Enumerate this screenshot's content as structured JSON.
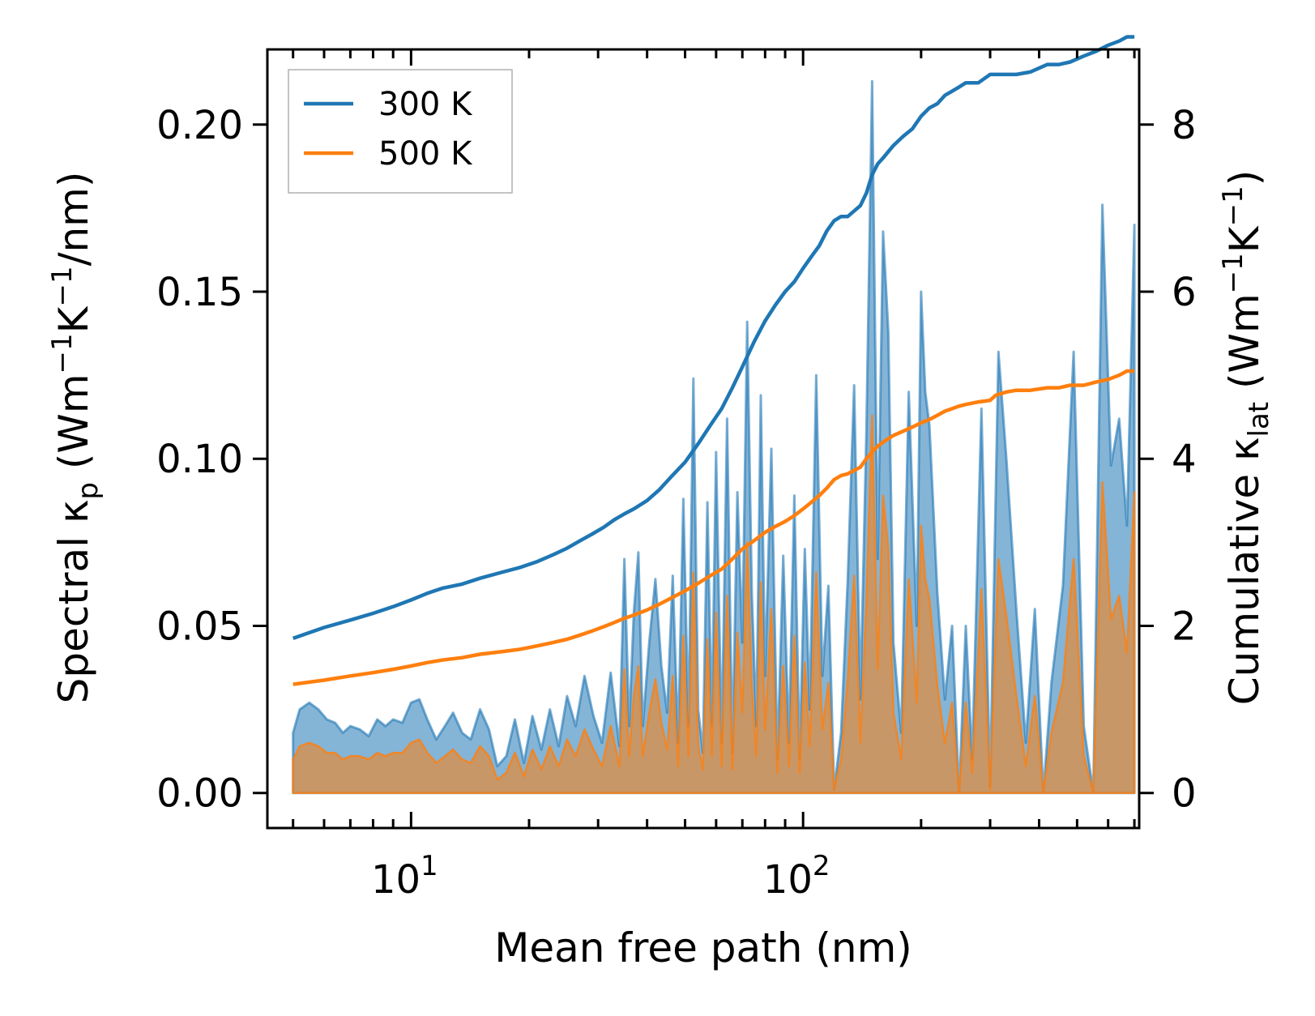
{
  "chart_data": {
    "type": "line",
    "title": "",
    "xlabel": "Mean free path (nm)",
    "ylabel_left_main": "Spectral κ",
    "ylabel_left_sub": "p",
    "ylabel_left_units": " (Wm",
    "ylabel_left_units_sup1": "−1",
    "ylabel_left_units_mid": "K",
    "ylabel_left_units_sup2": "−1",
    "ylabel_left_units_end": "/nm)",
    "ylabel_right_main": "Cumulative κ",
    "ylabel_right_sub": "lat",
    "ylabel_right_units": " (Wm",
    "ylabel_right_units_sup1": "−1",
    "ylabel_right_units_mid": "K",
    "ylabel_right_units_sup2": "−1",
    "ylabel_right_units_end": ")",
    "xscale": "log",
    "xlim": [
      4.3,
      720
    ],
    "ylim_left": [
      -0.0105,
      0.2225
    ],
    "ylim_right": [
      -0.42,
      8.9
    ],
    "x_major_ticks": [
      {
        "value": 10,
        "base": "10",
        "exp": "1"
      },
      {
        "value": 100,
        "base": "10",
        "exp": "2"
      }
    ],
    "y_left_ticks": [
      {
        "value": 0.0,
        "label": "0.00"
      },
      {
        "value": 0.05,
        "label": "0.05"
      },
      {
        "value": 0.1,
        "label": "0.10"
      },
      {
        "value": 0.15,
        "label": "0.15"
      },
      {
        "value": 0.2,
        "label": "0.20"
      }
    ],
    "y_right_ticks": [
      {
        "value": 0,
        "label": "0"
      },
      {
        "value": 2,
        "label": "2"
      },
      {
        "value": 4,
        "label": "4"
      },
      {
        "value": 6,
        "label": "6"
      },
      {
        "value": 8,
        "label": "8"
      }
    ],
    "legend": {
      "position": "upper-left",
      "entries": [
        {
          "label": "300 K",
          "color": "#1f77b4"
        },
        {
          "label": "500 K",
          "color": "#ff7f0e"
        }
      ]
    },
    "colors": {
      "s300": "#1f77b4",
      "s500": "#ff7f0e",
      "fill300": "#1f77b4",
      "fill500": "#ff7f0e"
    },
    "spectral": {
      "x": [
        5.0,
        5.2,
        5.5,
        5.8,
        6.1,
        6.4,
        6.7,
        7.0,
        7.4,
        7.8,
        8.2,
        8.6,
        9.0,
        9.5,
        10.0,
        10.5,
        11.0,
        11.6,
        12.2,
        12.8,
        13.5,
        14.2,
        15.0,
        15.8,
        16.6,
        17.5,
        18.4,
        19.4,
        20.4,
        21.5,
        22.6,
        23.8,
        25.0,
        26.3,
        27.7,
        29.2,
        30.7,
        32.3,
        34.0,
        35.0,
        36.0,
        37.0,
        38.0,
        39.0,
        40.5,
        42.0,
        43.5,
        45.0,
        46.5,
        48.0,
        49.5,
        51.0,
        52.5,
        54.0,
        55.5,
        57.0,
        58.5,
        60.0,
        62.0,
        64.0,
        66.0,
        68.0,
        70.0,
        72.0,
        74.0,
        76.0,
        78.0,
        80.0,
        83.0,
        86.0,
        89.0,
        92.0,
        95.0,
        98.0,
        101.0,
        104.0,
        108.0,
        112.0,
        116.0,
        120.0,
        125.0,
        130.0,
        135.0,
        140.0,
        145.0,
        150.0,
        155.0,
        160.0,
        165.0,
        170.0,
        178.0,
        186.0,
        195.0,
        200.0,
        205.0,
        210.0,
        220.0,
        230.0,
        240.0,
        250.0,
        260.0,
        270.0,
        285.0,
        300.0,
        315.0,
        330.0,
        350.0,
        370.0,
        390.0,
        410.0,
        430.0,
        460.0,
        490.0,
        520.0,
        550.0,
        580.0,
        610.0,
        640.0,
        670.0,
        700.0
      ],
      "y300": [
        0.018,
        0.025,
        0.027,
        0.025,
        0.022,
        0.021,
        0.018,
        0.02,
        0.019,
        0.017,
        0.022,
        0.02,
        0.022,
        0.021,
        0.027,
        0.028,
        0.022,
        0.016,
        0.02,
        0.024,
        0.018,
        0.016,
        0.025,
        0.019,
        0.008,
        0.011,
        0.022,
        0.009,
        0.023,
        0.013,
        0.025,
        0.014,
        0.029,
        0.02,
        0.035,
        0.023,
        0.015,
        0.036,
        0.014,
        0.07,
        0.02,
        0.054,
        0.072,
        0.02,
        0.045,
        0.064,
        0.038,
        0.024,
        0.065,
        0.015,
        0.088,
        0.02,
        0.124,
        0.025,
        0.012,
        0.087,
        0.02,
        0.102,
        0.015,
        0.112,
        0.012,
        0.09,
        0.045,
        0.141,
        0.06,
        0.02,
        0.119,
        0.035,
        0.103,
        0.01,
        0.071,
        0.015,
        0.089,
        0.01,
        0.073,
        0.025,
        0.125,
        0.035,
        0.062,
        0.001,
        0.018,
        0.064,
        0.122,
        0.028,
        0.108,
        0.213,
        0.07,
        0.168,
        0.138,
        0.045,
        0.018,
        0.12,
        0.05,
        0.15,
        0.12,
        0.11,
        0.06,
        0.028,
        0.05,
        0.0,
        0.05,
        0.01,
        0.115,
        0.002,
        0.132,
        0.1,
        0.055,
        0.015,
        0.055,
        0.0,
        0.033,
        0.062,
        0.132,
        0.02,
        0.0,
        0.176,
        0.098,
        0.112,
        0.08,
        0.17,
        0.0
      ],
      "y500": [
        0.01,
        0.014,
        0.015,
        0.014,
        0.012,
        0.012,
        0.01,
        0.011,
        0.011,
        0.01,
        0.012,
        0.011,
        0.012,
        0.012,
        0.015,
        0.016,
        0.012,
        0.009,
        0.011,
        0.013,
        0.01,
        0.009,
        0.014,
        0.011,
        0.004,
        0.006,
        0.012,
        0.005,
        0.013,
        0.007,
        0.014,
        0.008,
        0.016,
        0.011,
        0.019,
        0.013,
        0.008,
        0.02,
        0.008,
        0.037,
        0.011,
        0.029,
        0.038,
        0.011,
        0.024,
        0.034,
        0.021,
        0.013,
        0.035,
        0.008,
        0.047,
        0.011,
        0.066,
        0.014,
        0.007,
        0.046,
        0.011,
        0.054,
        0.008,
        0.059,
        0.007,
        0.048,
        0.024,
        0.075,
        0.032,
        0.011,
        0.063,
        0.019,
        0.055,
        0.006,
        0.038,
        0.008,
        0.047,
        0.006,
        0.039,
        0.014,
        0.066,
        0.019,
        0.033,
        0.001,
        0.01,
        0.034,
        0.065,
        0.015,
        0.057,
        0.113,
        0.037,
        0.089,
        0.073,
        0.024,
        0.01,
        0.064,
        0.027,
        0.08,
        0.064,
        0.058,
        0.032,
        0.015,
        0.027,
        0.0,
        0.027,
        0.006,
        0.061,
        0.001,
        0.07,
        0.053,
        0.029,
        0.008,
        0.029,
        0.0,
        0.018,
        0.033,
        0.07,
        0.011,
        0.0,
        0.093,
        0.052,
        0.059,
        0.042,
        0.09,
        0.0
      ]
    },
    "cumulative": {
      "x": [
        5.0,
        6.0,
        7.0,
        8.0,
        9.0,
        10.0,
        11.0,
        12.0,
        13.5,
        15.0,
        17.0,
        19.0,
        21.0,
        23.0,
        25.0,
        27.0,
        29.0,
        31.0,
        33.0,
        35.0,
        37.0,
        40.0,
        43.0,
        46.0,
        50.0,
        54.0,
        58.0,
        62.0,
        66.0,
        70.0,
        75.0,
        80.0,
        85.0,
        90.0,
        95.0,
        100.0,
        105.0,
        110.0,
        115.0,
        120.0,
        125.0,
        130.0,
        140.0,
        145.0,
        150.0,
        155.0,
        160.0,
        170.0,
        180.0,
        190.0,
        200.0,
        210.0,
        220.0,
        230.0,
        240.0,
        250.0,
        260.0,
        280.0,
        300.0,
        310.0,
        330.0,
        350.0,
        380.0,
        420.0,
        450.0,
        480.0,
        520.0,
        560.0,
        600.0,
        640.0,
        670.0,
        700.0
      ],
      "y300": [
        1.85,
        1.98,
        2.07,
        2.15,
        2.23,
        2.31,
        2.39,
        2.45,
        2.5,
        2.57,
        2.64,
        2.7,
        2.77,
        2.85,
        2.93,
        3.02,
        3.1,
        3.18,
        3.27,
        3.34,
        3.4,
        3.5,
        3.63,
        3.78,
        3.96,
        4.18,
        4.4,
        4.6,
        4.85,
        5.1,
        5.4,
        5.65,
        5.84,
        6.0,
        6.12,
        6.28,
        6.42,
        6.55,
        6.73,
        6.85,
        6.9,
        6.9,
        7.03,
        7.18,
        7.4,
        7.53,
        7.6,
        7.75,
        7.86,
        7.95,
        8.1,
        8.2,
        8.25,
        8.35,
        8.4,
        8.45,
        8.5,
        8.5,
        8.6,
        8.6,
        8.6,
        8.6,
        8.63,
        8.72,
        8.72,
        8.75,
        8.82,
        8.88,
        8.95,
        9.0,
        9.05,
        9.05
      ],
      "y500": [
        1.3,
        1.35,
        1.4,
        1.44,
        1.48,
        1.52,
        1.56,
        1.59,
        1.62,
        1.66,
        1.69,
        1.72,
        1.76,
        1.8,
        1.84,
        1.89,
        1.94,
        1.99,
        2.04,
        2.09,
        2.13,
        2.19,
        2.26,
        2.33,
        2.42,
        2.51,
        2.6,
        2.68,
        2.8,
        2.92,
        3.02,
        3.12,
        3.19,
        3.25,
        3.32,
        3.4,
        3.48,
        3.56,
        3.65,
        3.75,
        3.8,
        3.82,
        3.9,
        4.0,
        4.08,
        4.15,
        4.2,
        4.28,
        4.33,
        4.38,
        4.43,
        4.47,
        4.52,
        4.57,
        4.6,
        4.63,
        4.65,
        4.68,
        4.7,
        4.76,
        4.8,
        4.82,
        4.82,
        4.85,
        4.85,
        4.88,
        4.88,
        4.92,
        4.95,
        5.0,
        5.05,
        5.05
      ]
    }
  }
}
